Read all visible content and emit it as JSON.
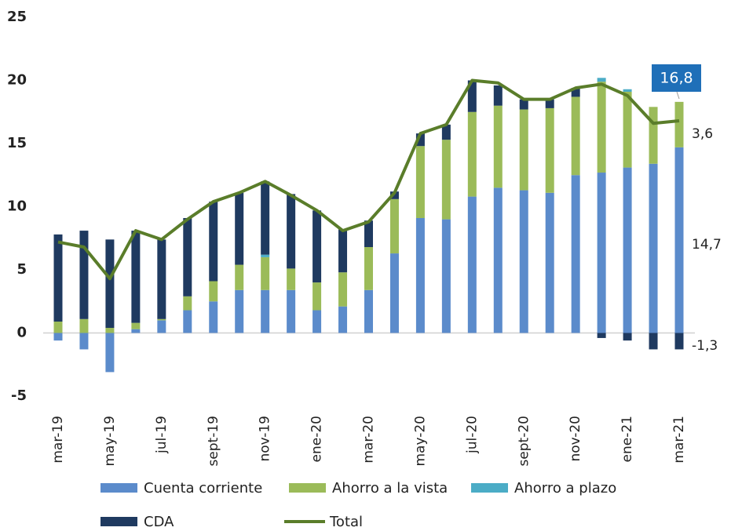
{
  "chart_data": {
    "type": "bar",
    "categories": [
      "mar-19",
      null,
      "may-19",
      null,
      "jul-19",
      null,
      "sept-19",
      null,
      "nov-19",
      null,
      "ene-20",
      null,
      "mar-20",
      null,
      "may-20",
      null,
      "jul-20",
      null,
      "sept-20",
      null,
      "nov-20",
      null,
      "ene-21",
      null,
      "mar-21"
    ],
    "series": [
      {
        "name": "Cuenta corriente",
        "type": "bar",
        "color": "#5b8bcb",
        "values": [
          -0.6,
          -1.3,
          -3.1,
          0.3,
          1.0,
          1.8,
          2.5,
          3.4,
          3.4,
          3.4,
          1.8,
          2.1,
          3.4,
          6.3,
          9.1,
          9.0,
          10.8,
          11.5,
          11.3,
          11.1,
          12.5,
          12.7,
          13.1,
          13.4,
          14.7
        ],
        "value_labels": [
          null,
          null,
          null,
          null,
          null,
          null,
          null,
          null,
          null,
          null,
          null,
          null,
          null,
          null,
          null,
          null,
          null,
          null,
          null,
          null,
          null,
          null,
          null,
          null,
          "14,7"
        ]
      },
      {
        "name": "Ahorro a la vista",
        "type": "bar",
        "color": "#9bbb59",
        "values": [
          0.9,
          1.1,
          0.4,
          0.5,
          0.1,
          1.1,
          1.6,
          2.0,
          2.6,
          1.7,
          2.2,
          2.7,
          3.4,
          4.3,
          5.7,
          6.3,
          6.7,
          6.5,
          6.4,
          6.7,
          6.2,
          7.2,
          6.0,
          4.5,
          3.6
        ],
        "value_labels": [
          null,
          null,
          null,
          null,
          null,
          null,
          null,
          null,
          null,
          null,
          null,
          null,
          null,
          null,
          null,
          null,
          null,
          null,
          null,
          null,
          null,
          null,
          null,
          null,
          "3,6"
        ]
      },
      {
        "name": "Ahorro a plazo",
        "type": "bar",
        "color": "#4bacc6",
        "values": [
          0,
          0,
          0,
          0,
          0,
          0,
          0,
          0,
          0.2,
          0,
          0,
          0,
          0,
          0,
          0,
          0,
          0,
          0,
          0,
          0,
          0,
          0.3,
          0.2,
          0,
          0
        ]
      },
      {
        "name": "CDA",
        "type": "bar",
        "color": "#1f3a60",
        "values": [
          6.9,
          7.0,
          7.0,
          7.3,
          6.3,
          6.2,
          6.3,
          5.7,
          5.8,
          5.9,
          5.7,
          3.4,
          2.1,
          0.6,
          1.0,
          1.2,
          2.5,
          1.6,
          0.8,
          0.7,
          0.7,
          -0.4,
          -0.6,
          -1.3,
          -1.3
        ],
        "value_labels": [
          null,
          null,
          null,
          null,
          null,
          null,
          null,
          null,
          null,
          null,
          null,
          null,
          null,
          null,
          null,
          null,
          null,
          null,
          null,
          null,
          null,
          null,
          null,
          null,
          "-1,3"
        ]
      },
      {
        "name": "Total",
        "type": "line",
        "color": "#5a7d2a",
        "values": [
          7.2,
          6.8,
          4.3,
          8.1,
          7.4,
          9.0,
          10.4,
          11.1,
          12.0,
          10.9,
          9.7,
          8.1,
          8.8,
          11.1,
          15.8,
          16.5,
          20.0,
          19.8,
          18.5,
          18.5,
          19.4,
          19.7,
          18.8,
          16.6,
          16.8
        ],
        "value_labels": [
          null,
          null,
          null,
          null,
          null,
          null,
          null,
          null,
          null,
          null,
          null,
          null,
          null,
          null,
          null,
          null,
          null,
          null,
          null,
          null,
          null,
          null,
          null,
          null,
          "16,8"
        ]
      }
    ],
    "ylim": [
      -5,
      25
    ],
    "yticks": [
      -5,
      0,
      5,
      10,
      15,
      20,
      25
    ],
    "grid": false
  }
}
